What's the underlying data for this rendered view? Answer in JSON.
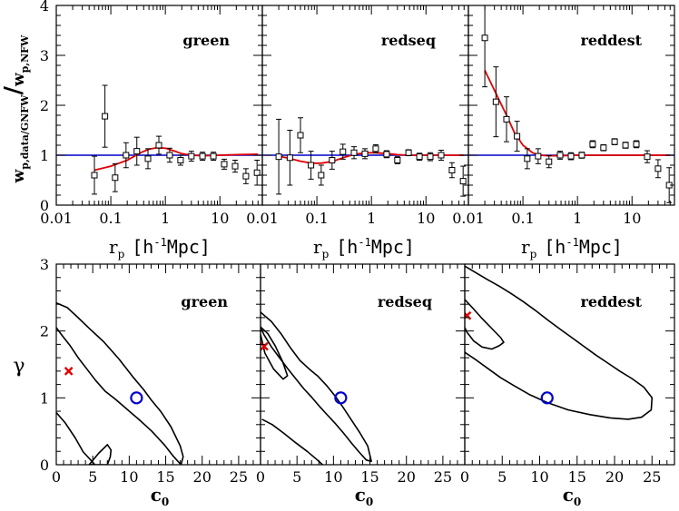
{
  "colors": {
    "model": "#e00000",
    "reference": "#0000cc",
    "data": "#000000",
    "best_fit": "#e00000",
    "nfw": "#0000cc",
    "contour": "#000000"
  },
  "chart_data": [
    {
      "type": "scatter",
      "panels": [
        "green",
        "redseq",
        "reddest"
      ],
      "ylabel_main": "w",
      "ylabel_num_sub": "p,data/GNFW",
      "ylabel_sep": "/",
      "ylabel_den": "w",
      "ylabel_den_sub": "p,NFW",
      "xlabel_main": "r",
      "xlabel_sub": "p",
      "xlabel_unit_open": "[h",
      "xlabel_unit_sup": "-1",
      "xlabel_unit_close": "Mpc]",
      "xscale": "log",
      "xlim": [
        0.01,
        60
      ],
      "ylim": [
        0,
        4
      ],
      "xtick_labels": [
        "0.01",
        "0.1",
        "1",
        "10"
      ],
      "xticks": [
        0.01,
        0.1,
        1,
        10
      ],
      "ytick_labels": [
        "0",
        "1",
        "2",
        "3",
        "4"
      ],
      "yticks": [
        0,
        1,
        2,
        3,
        4
      ],
      "reference_line": 1,
      "series": [
        {
          "panel": "green",
          "data": {
            "x": [
              0.05,
              0.078,
              0.12,
              0.19,
              0.3,
              0.48,
              0.76,
              1.2,
              1.9,
              3.0,
              4.8,
              7.6,
              12,
              19,
              30,
              48
            ],
            "y": [
              0.6,
              1.78,
              0.55,
              1.0,
              1.08,
              0.93,
              1.2,
              1.0,
              0.9,
              0.98,
              0.98,
              0.98,
              0.82,
              0.78,
              0.58,
              0.65
            ],
            "yerr": [
              0.38,
              0.62,
              0.28,
              0.25,
              0.28,
              0.2,
              0.18,
              0.14,
              0.1,
              0.1,
              0.08,
              0.08,
              0.1,
              0.12,
              0.15,
              0.25
            ]
          },
          "model": {
            "x": [
              0.05,
              0.1,
              0.2,
              0.35,
              0.5,
              0.7,
              1.0,
              1.5,
              2.0,
              3.0,
              5.0,
              10,
              20,
              50
            ],
            "y": [
              0.7,
              0.78,
              0.9,
              1.05,
              1.12,
              1.15,
              1.14,
              1.08,
              1.03,
              1.0,
              0.99,
              1.0,
              1.01,
              1.02
            ]
          }
        },
        {
          "panel": "redseq",
          "data": {
            "x": [
              0.02,
              0.032,
              0.05,
              0.078,
              0.12,
              0.19,
              0.3,
              0.48,
              0.76,
              1.2,
              1.9,
              3.0,
              4.8,
              7.6,
              12,
              19,
              30,
              48
            ],
            "y": [
              0.97,
              0.95,
              1.4,
              0.8,
              0.6,
              0.9,
              1.07,
              1.05,
              1.03,
              1.13,
              1.02,
              0.9,
              1.05,
              0.97,
              0.97,
              1.0,
              0.7,
              0.48
            ],
            "yerr": [
              0.75,
              0.55,
              0.35,
              0.28,
              0.2,
              0.18,
              0.15,
              0.12,
              0.1,
              0.08,
              0.07,
              0.07,
              0.06,
              0.07,
              0.08,
              0.1,
              0.15,
              0.3
            ]
          },
          "model": {
            "x": [
              0.02,
              0.03,
              0.05,
              0.08,
              0.12,
              0.2,
              0.3,
              0.5,
              0.8,
              1.2,
              2.0,
              3.0,
              5.0,
              10,
              20,
              50
            ],
            "y": [
              0.98,
              0.94,
              0.88,
              0.84,
              0.84,
              0.88,
              0.95,
              1.02,
              1.05,
              1.05,
              1.03,
              1.01,
              1.0,
              1.0,
              1.0,
              1.0
            ]
          }
        },
        {
          "panel": "reddest",
          "data": {
            "x": [
              0.02,
              0.032,
              0.05,
              0.078,
              0.12,
              0.19,
              0.3,
              0.48,
              0.76,
              1.2,
              1.9,
              3.0,
              4.8,
              7.6,
              12,
              19,
              30,
              48
            ],
            "y": [
              3.35,
              2.07,
              1.72,
              1.38,
              0.93,
              0.98,
              0.87,
              1.0,
              0.98,
              1.0,
              1.22,
              1.15,
              1.27,
              1.2,
              1.22,
              0.97,
              0.73,
              0.4
            ],
            "yerr": [
              0.98,
              0.7,
              0.45,
              0.3,
              0.2,
              0.15,
              0.12,
              0.08,
              0.07,
              0.06,
              0.07,
              0.06,
              0.06,
              0.06,
              0.07,
              0.12,
              0.18,
              0.35
            ]
          },
          "model": {
            "x": [
              0.02,
              0.03,
              0.05,
              0.07,
              0.1,
              0.15,
              0.2,
              0.3,
              0.5,
              1.0,
              2.0,
              5.0,
              10,
              20,
              50
            ],
            "y": [
              2.7,
              2.3,
              1.8,
              1.45,
              1.2,
              1.05,
              1.0,
              0.99,
              0.99,
              1.0,
              1.0,
              1.0,
              1.0,
              1.0,
              1.0
            ]
          }
        }
      ]
    },
    {
      "type": "scatter",
      "panels": [
        "green",
        "redseq",
        "reddest"
      ],
      "xlabel_main": "c",
      "xlabel_sub": "0",
      "ylabel": "γ",
      "xlim": [
        0,
        28
      ],
      "ylim": [
        0,
        3
      ],
      "xtick_labels": [
        "0",
        "5",
        "10",
        "15",
        "20",
        "25"
      ],
      "xticks": [
        0,
        5,
        10,
        15,
        20,
        25
      ],
      "ytick_labels": [
        "0",
        "1",
        "2",
        "3"
      ],
      "yticks": [
        0,
        1,
        2,
        3
      ],
      "nfw_point": {
        "c0": 11,
        "gamma": 1
      },
      "series": [
        {
          "panel": "green",
          "best_fit": {
            "c0": 1.7,
            "gamma": 1.4
          },
          "contours": [
            {
              "c0": [
                0,
                1.5,
                2.8,
                4.5,
                6.5,
                8.6,
                10.6,
                12.0,
                13.0,
                14.3,
                15.7,
                17.0,
                17.4,
                17.1,
                16.1,
                14.8,
                13.1,
                11.4,
                9.7,
                8.2,
                6.7,
                5.4,
                4.2,
                3.0,
                1.9,
                0.9,
                0
              ],
              "gamma": [
                2.42,
                2.35,
                2.22,
                2.04,
                1.84,
                1.58,
                1.3,
                1.12,
                0.97,
                0.8,
                0.57,
                0.28,
                0.12,
                0.0,
                0.12,
                0.3,
                0.5,
                0.67,
                0.83,
                0.97,
                1.1,
                1.26,
                1.43,
                1.6,
                1.78,
                1.92,
                2.05
              ]
            },
            {
              "c0": [
                0,
                1.2,
                2.6,
                3.7,
                4.8,
                5.3,
                5.1,
                4.6
              ],
              "gamma": [
                0.78,
                0.63,
                0.4,
                0.19,
                0.06,
                0.0,
                0.0,
                0.0
              ]
            },
            {
              "c0": [
                4.5,
                5.8,
                7.0,
                7.5,
                7.4,
                7.0,
                6.0,
                5.3,
                4.5
              ],
              "gamma": [
                0.0,
                0.17,
                0.3,
                0.22,
                0.12,
                0.0,
                0.0,
                0.0,
                0.0
              ]
            }
          ]
        },
        {
          "panel": "redseq",
          "best_fit": {
            "c0": 0.5,
            "gamma": 1.77
          },
          "contours": [
            {
              "c0": [
                0,
                1.5,
                2.8,
                4.1,
                5.4,
                6.7,
                7.9,
                9.1,
                10.2,
                11.3,
                12.4,
                13.6,
                14.7,
                15.2,
                14.5,
                13.5,
                12.5,
                11.4,
                10.3,
                9.2,
                8.1,
                7.0,
                5.9,
                4.8,
                3.7,
                2.6,
                1.5,
                0.5,
                0
              ],
              "gamma": [
                2.28,
                2.14,
                1.96,
                1.75,
                1.56,
                1.43,
                1.32,
                1.18,
                1.03,
                0.86,
                0.68,
                0.48,
                0.28,
                0.05,
                0.07,
                0.19,
                0.32,
                0.47,
                0.61,
                0.74,
                0.87,
                1.01,
                1.14,
                1.29,
                1.44,
                1.6,
                1.76,
                1.94,
                2.05
              ]
            },
            {
              "c0": [
                0,
                1.0,
                2.0,
                3.0,
                3.7,
                3.1,
                1.8,
                0.6,
                0
              ],
              "gamma": [
                2.06,
                1.96,
                1.78,
                1.55,
                1.33,
                1.28,
                1.43,
                1.67,
                1.95
              ]
            },
            {
              "c0": [
                0.2,
                1.6,
                3.2,
                4.8,
                6.4,
                7.8,
                8.5
              ],
              "gamma": [
                0.68,
                0.6,
                0.47,
                0.33,
                0.2,
                0.07,
                0.0
              ]
            }
          ]
        },
        {
          "panel": "reddest",
          "best_fit": {
            "c0": 0.3,
            "gamma": 2.23
          },
          "contours": [
            {
              "c0": [
                0,
                1.5,
                3.0,
                4.6,
                6.2,
                7.8,
                9.4,
                11.0,
                12.7,
                14.3,
                15.9,
                17.5,
                19.1,
                20.7,
                22.3,
                23.9,
                25.0,
                24.9,
                23.6,
                21.8,
                19.4,
                16.7,
                13.8,
                11.0,
                8.6,
                6.6,
                4.8,
                3.2,
                1.6,
                0
              ],
              "gamma": [
                2.97,
                2.87,
                2.77,
                2.67,
                2.56,
                2.44,
                2.31,
                2.17,
                2.03,
                1.9,
                1.77,
                1.64,
                1.52,
                1.4,
                1.29,
                1.16,
                1.0,
                0.82,
                0.71,
                0.68,
                0.7,
                0.75,
                0.82,
                0.93,
                1.05,
                1.18,
                1.3,
                1.43,
                1.56,
                1.68
              ]
            },
            {
              "c0": [
                0,
                1.0,
                2.2,
                3.5,
                4.8,
                5.2,
                4.6,
                3.6,
                2.3,
                1.2,
                0.3,
                0
              ],
              "gamma": [
                2.47,
                2.35,
                2.2,
                2.05,
                1.9,
                1.83,
                1.78,
                1.73,
                1.76,
                1.85,
                1.98,
                2.05
              ]
            }
          ]
        }
      ]
    }
  ]
}
